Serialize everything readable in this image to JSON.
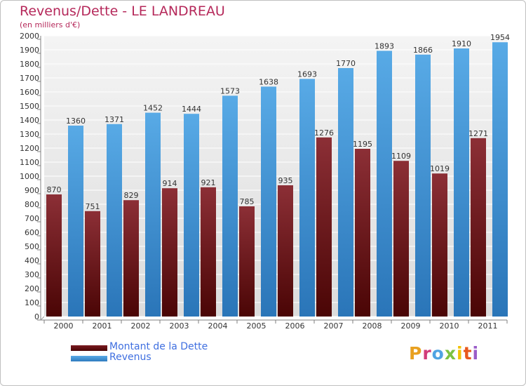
{
  "header": {
    "title": "Revenus/Dette - LE LANDREAU",
    "subtitle": "(en milliers d'€)"
  },
  "chart_data": {
    "type": "bar",
    "title": "Revenus/Dette - LE LANDREAU",
    "subtitle": "(en milliers d'€)",
    "xlabel": "",
    "ylabel": "",
    "ylim": [
      0,
      2000
    ],
    "yticks": [
      0,
      100,
      200,
      300,
      400,
      500,
      600,
      700,
      800,
      900,
      1000,
      1100,
      1200,
      1300,
      1400,
      1500,
      1600,
      1700,
      1800,
      1900,
      2000
    ],
    "grid": true,
    "legend_position": "bottom-left",
    "categories": [
      "2000",
      "2001",
      "2002",
      "2003",
      "2004",
      "2005",
      "2006",
      "2007",
      "2008",
      "2009",
      "2010",
      "2011"
    ],
    "series": [
      {
        "name": "Montant de la Dette",
        "color": "#8b2a32",
        "values": [
          870,
          751,
          829,
          914,
          921,
          785,
          935,
          1276,
          1195,
          1109,
          1019,
          1271
        ],
        "labels": [
          "870",
          "751",
          "829",
          "914",
          "921",
          "785",
          "935",
          "1276",
          "1195",
          "1109",
          "1019",
          "1271"
        ]
      },
      {
        "name": "Revenus",
        "color": "#4fa3e3",
        "values": [
          1360,
          1371,
          1452,
          1444,
          1573,
          1638,
          1693,
          1770,
          1893,
          1866,
          1910,
          1954
        ],
        "labels": [
          "1360",
          "1371",
          "1452",
          "1444",
          "1573",
          "1638",
          "1693",
          "1770",
          "1893",
          "1866",
          "1910",
          "1954"
        ]
      }
    ]
  },
  "legend": {
    "dette_label": "Montant de la Dette",
    "revenus_label": "Revenus"
  },
  "brand": {
    "logo_text": "Proxiti",
    "logo_colors": [
      "#e8a020",
      "#d23c7a",
      "#4fa3e3",
      "#7cc242",
      "#f2c200",
      "#e8581c",
      "#9a5cc8"
    ]
  }
}
